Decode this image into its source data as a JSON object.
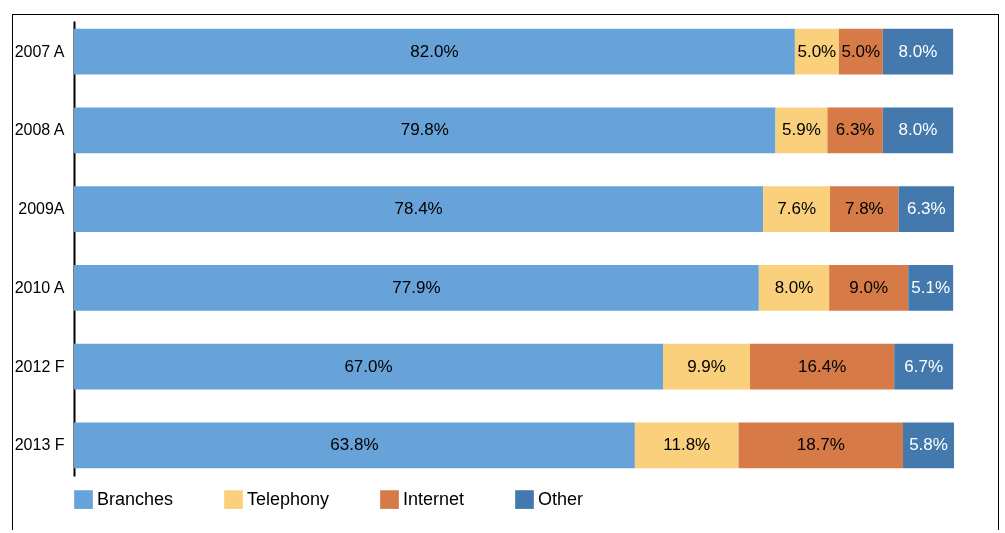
{
  "chart_data": {
    "type": "bar",
    "orientation": "horizontal",
    "stacked": true,
    "categories": [
      "2007 A",
      "2008 A",
      "2009A",
      "2010 A",
      "2012 F",
      "2013 F"
    ],
    "series": [
      {
        "name": "Branches",
        "color": "#67a3d9",
        "values": [
          82.0,
          79.8,
          78.4,
          77.9,
          67.0,
          63.8
        ],
        "value_labels": [
          "82.0%",
          "79.8%",
          "78.4%",
          "77.9%",
          "67.0%",
          "63.8%"
        ]
      },
      {
        "name": "Telephony",
        "color": "#fbd07c",
        "values": [
          5.0,
          5.9,
          7.6,
          8.0,
          9.9,
          11.8
        ],
        "value_labels": [
          "5.0%",
          "5.9%",
          "7.6%",
          "8.0%",
          "9.9%",
          "11.8%"
        ]
      },
      {
        "name": "Internet",
        "color": "#d67b48",
        "values": [
          5.0,
          6.3,
          7.8,
          9.0,
          16.4,
          18.7
        ],
        "value_labels": [
          "5.0%",
          "6.3%",
          "7.8%",
          "9.0%",
          "16.4%",
          "18.7%"
        ]
      },
      {
        "name": "Other",
        "color": "#4479ae",
        "values": [
          8.0,
          8.0,
          6.3,
          5.1,
          6.7,
          5.8
        ],
        "value_labels": [
          "8.0%",
          "8.0%",
          "6.3%",
          "5.1%",
          "6.7%",
          "5.8%"
        ]
      }
    ],
    "legend": "bottom"
  }
}
